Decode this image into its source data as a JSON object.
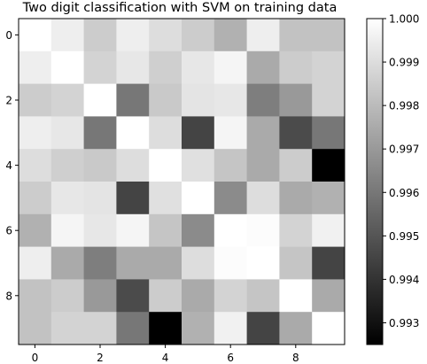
{
  "chart_data": {
    "type": "heatmap",
    "title": "Two digit classification with SVM on training data",
    "x_ticks": [
      "0",
      "2",
      "4",
      "6",
      "8"
    ],
    "y_ticks": [
      "0",
      "2",
      "4",
      "6",
      "8"
    ],
    "colorbar": {
      "min": 0.9925,
      "max": 1.0,
      "ticks": [
        "0.993",
        "0.994",
        "0.995",
        "0.996",
        "0.997",
        "0.998",
        "0.999",
        "1.000"
      ],
      "colormap": "gray"
    },
    "matrix": [
      [
        1.0,
        0.9995,
        0.9985,
        0.9995,
        0.999,
        0.9985,
        0.9977,
        0.9995,
        0.9982,
        0.9982
      ],
      [
        0.9995,
        1.0,
        0.9987,
        0.9993,
        0.9986,
        0.9993,
        0.9997,
        0.9975,
        0.9985,
        0.9987
      ],
      [
        0.9985,
        0.9987,
        1.0,
        0.996,
        0.9984,
        0.9992,
        0.9993,
        0.9962,
        0.997,
        0.9987
      ],
      [
        0.9995,
        0.9993,
        0.996,
        1.0,
        0.999,
        0.9945,
        0.9997,
        0.9975,
        0.9947,
        0.996
      ],
      [
        0.999,
        0.9986,
        0.9984,
        0.999,
        1.0,
        0.9991,
        0.9983,
        0.9975,
        0.9985,
        0.9925
      ],
      [
        0.9985,
        0.9993,
        0.9992,
        0.9945,
        0.9991,
        1.0,
        0.9966,
        0.999,
        0.9975,
        0.9977
      ],
      [
        0.9977,
        0.9997,
        0.9993,
        0.9997,
        0.9983,
        0.9966,
        1.0,
        0.9999,
        0.9987,
        0.9996
      ],
      [
        0.9995,
        0.9975,
        0.9962,
        0.9975,
        0.9975,
        0.999,
        0.9999,
        1.0,
        0.9983,
        0.9945
      ],
      [
        0.9982,
        0.9985,
        0.997,
        0.9947,
        0.9985,
        0.9975,
        0.9987,
        0.9983,
        1.0,
        0.9975
      ],
      [
        0.9982,
        0.9987,
        0.9987,
        0.996,
        0.9925,
        0.9977,
        0.9996,
        0.9945,
        0.9975,
        1.0
      ]
    ]
  }
}
